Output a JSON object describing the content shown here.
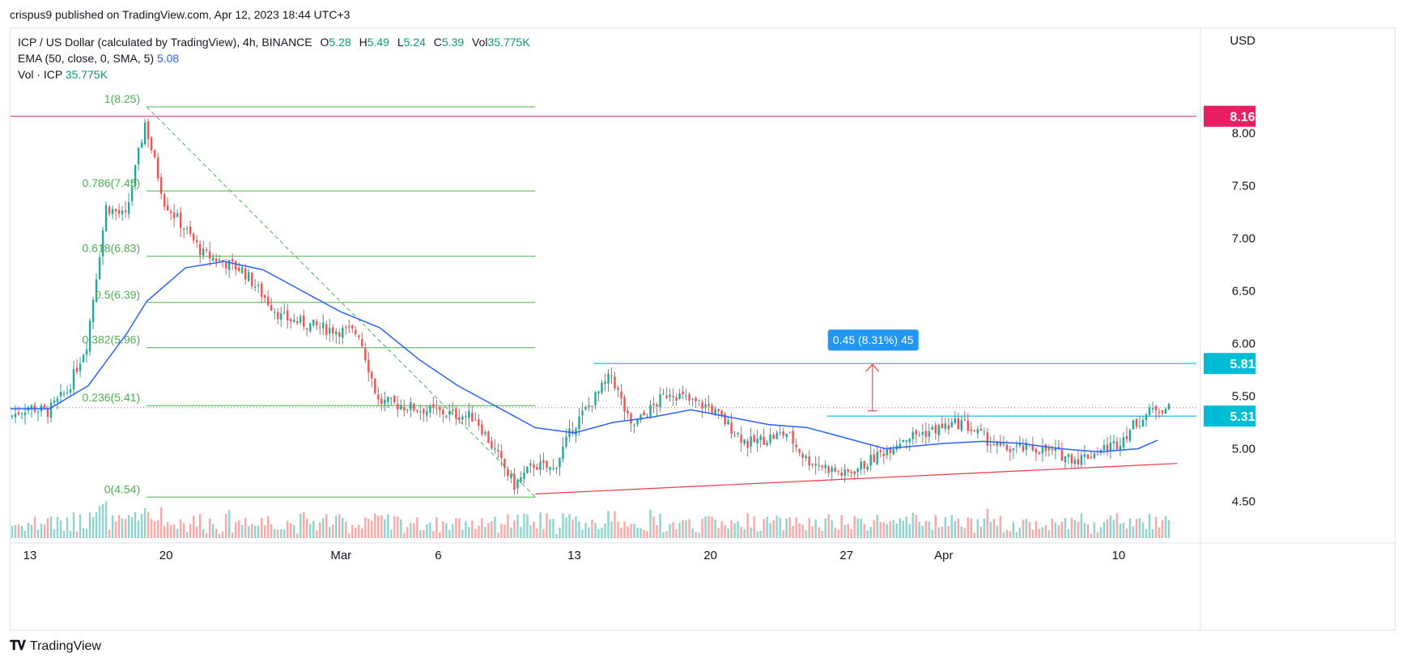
{
  "header": {
    "published_line": "crispus9 published on TradingView.com, Apr 12, 2023 18:44 UTC+3"
  },
  "legend": {
    "symbol_line": "ICP / US Dollar (calculated by TradingView), 4h, BINANCE",
    "o_label": "O",
    "o_value": "5.28",
    "h_label": "H",
    "h_value": "5.49",
    "l_label": "L",
    "l_value": "5.24",
    "c_label": "C",
    "c_value": "5.39",
    "vol_label": "Vol",
    "vol_value": "35.775K",
    "ema_label": "EMA (50, close, 0, SMA, 5)",
    "ema_value": "5.08",
    "vol_row_label": "Vol · ICP",
    "vol_row_value": "35.775K"
  },
  "footer": {
    "brand": "TradingView"
  },
  "colors": {
    "up": "#26a69a",
    "down": "#ef5350",
    "ema": "#2962ff",
    "fib": "#4caf50",
    "resistance_red": "#e91e63",
    "cyan": "#00bcd4",
    "trend": "#f23645",
    "measure": "#2196f3"
  },
  "chart_data": {
    "type": "candlestick",
    "title": "ICP / US Dollar (calculated by TradingView), 4h, BINANCE",
    "currency_label": "USD",
    "y_ticks": [
      "8.00",
      "7.50",
      "7.00",
      "6.50",
      "6.00",
      "5.50",
      "5.00",
      "4.50"
    ],
    "ylim": [
      4.15,
      8.55
    ],
    "x_ticks": [
      {
        "label": "13",
        "date": "2023-02-13"
      },
      {
        "label": "20",
        "date": "2023-02-20"
      },
      {
        "label": "Mar",
        "date": "2023-03-01"
      },
      {
        "label": "6",
        "date": "2023-03-06"
      },
      {
        "label": "13",
        "date": "2023-03-13"
      },
      {
        "label": "20",
        "date": "2023-03-20"
      },
      {
        "label": "27",
        "date": "2023-03-27"
      },
      {
        "label": "Apr",
        "date": "2023-04-01"
      },
      {
        "label": "10",
        "date": "2023-04-10"
      }
    ],
    "xlim": [
      "2023-02-12",
      "2023-04-14"
    ],
    "price_badges": [
      {
        "label": "8.16",
        "value": 8.16,
        "color": "#e91e63"
      },
      {
        "label": "5.81",
        "value": 5.81,
        "color": "#00bcd4"
      },
      {
        "label": "5.31",
        "value": 5.31,
        "color": "#00bcd4"
      }
    ],
    "fibonacci": [
      {
        "label": "1(8.25)",
        "value": 8.25
      },
      {
        "label": "0.786(7.45)",
        "value": 7.45
      },
      {
        "label": "0.618(6.83)",
        "value": 6.83
      },
      {
        "label": "0.5(6.39)",
        "value": 6.39
      },
      {
        "label": "0.382(5.96)",
        "value": 5.96
      },
      {
        "label": "0.236(5.41)",
        "value": 5.41
      },
      {
        "label": "0(4.54)",
        "value": 4.54
      }
    ],
    "measure_label": "0.45 (8.31%) 45",
    "measure_from": 5.36,
    "measure_to": 5.81,
    "key_closes": [
      {
        "date": "2023-02-12",
        "close": 5.3
      },
      {
        "date": "2023-02-13",
        "close": 5.4
      },
      {
        "date": "2023-02-14",
        "close": 5.35
      },
      {
        "date": "2023-02-15",
        "close": 5.55
      },
      {
        "date": "2023-02-16",
        "close": 6.0
      },
      {
        "date": "2023-02-17",
        "close": 7.3
      },
      {
        "date": "2023-02-18",
        "close": 7.2
      },
      {
        "date": "2023-02-19",
        "close": 8.1
      },
      {
        "date": "2023-02-20",
        "close": 7.35
      },
      {
        "date": "2023-02-22",
        "close": 6.85
      },
      {
        "date": "2023-02-24",
        "close": 6.7
      },
      {
        "date": "2023-02-26",
        "close": 6.25
      },
      {
        "date": "2023-02-28",
        "close": 6.15
      },
      {
        "date": "2023-03-02",
        "close": 6.1
      },
      {
        "date": "2023-03-03",
        "close": 5.45
      },
      {
        "date": "2023-03-06",
        "close": 5.35
      },
      {
        "date": "2023-03-08",
        "close": 5.3
      },
      {
        "date": "2023-03-10",
        "close": 4.65
      },
      {
        "date": "2023-03-11",
        "close": 4.85
      },
      {
        "date": "2023-03-12",
        "close": 4.8
      },
      {
        "date": "2023-03-13",
        "close": 5.2
      },
      {
        "date": "2023-03-14",
        "close": 5.45
      },
      {
        "date": "2023-03-15",
        "close": 5.7
      },
      {
        "date": "2023-03-16",
        "close": 5.2
      },
      {
        "date": "2023-03-18",
        "close": 5.55
      },
      {
        "date": "2023-03-19",
        "close": 5.45
      },
      {
        "date": "2023-03-20",
        "close": 5.4
      },
      {
        "date": "2023-03-22",
        "close": 5.05
      },
      {
        "date": "2023-03-24",
        "close": 5.15
      },
      {
        "date": "2023-03-25",
        "close": 4.9
      },
      {
        "date": "2023-03-27",
        "close": 4.75
      },
      {
        "date": "2023-03-28",
        "close": 4.85
      },
      {
        "date": "2023-03-30",
        "close": 5.1
      },
      {
        "date": "2023-04-02",
        "close": 5.25
      },
      {
        "date": "2023-04-04",
        "close": 5.0
      },
      {
        "date": "2023-04-06",
        "close": 5.0
      },
      {
        "date": "2023-04-08",
        "close": 4.9
      },
      {
        "date": "2023-04-10",
        "close": 5.05
      },
      {
        "date": "2023-04-11",
        "close": 5.25
      },
      {
        "date": "2023-04-12",
        "close": 5.39
      }
    ],
    "ema_points": [
      {
        "date": "2023-02-12",
        "value": 5.38
      },
      {
        "date": "2023-02-14",
        "value": 5.38
      },
      {
        "date": "2023-02-16",
        "value": 5.6
      },
      {
        "date": "2023-02-18",
        "value": 6.1
      },
      {
        "date": "2023-02-19",
        "value": 6.4
      },
      {
        "date": "2023-02-21",
        "value": 6.72
      },
      {
        "date": "2023-02-23",
        "value": 6.78
      },
      {
        "date": "2023-02-25",
        "value": 6.7
      },
      {
        "date": "2023-02-27",
        "value": 6.5
      },
      {
        "date": "2023-03-01",
        "value": 6.3
      },
      {
        "date": "2023-03-03",
        "value": 6.15
      },
      {
        "date": "2023-03-05",
        "value": 5.85
      },
      {
        "date": "2023-03-07",
        "value": 5.6
      },
      {
        "date": "2023-03-09",
        "value": 5.4
      },
      {
        "date": "2023-03-11",
        "value": 5.2
      },
      {
        "date": "2023-03-13",
        "value": 5.15
      },
      {
        "date": "2023-03-15",
        "value": 5.25
      },
      {
        "date": "2023-03-17",
        "value": 5.3
      },
      {
        "date": "2023-03-19",
        "value": 5.37
      },
      {
        "date": "2023-03-21",
        "value": 5.3
      },
      {
        "date": "2023-03-23",
        "value": 5.23
      },
      {
        "date": "2023-03-25",
        "value": 5.2
      },
      {
        "date": "2023-03-27",
        "value": 5.1
      },
      {
        "date": "2023-03-29",
        "value": 5.0
      },
      {
        "date": "2023-04-01",
        "value": 5.05
      },
      {
        "date": "2023-04-03",
        "value": 5.07
      },
      {
        "date": "2023-04-05",
        "value": 5.05
      },
      {
        "date": "2023-04-07",
        "value": 5.0
      },
      {
        "date": "2023-04-09",
        "value": 4.97
      },
      {
        "date": "2023-04-11",
        "value": 5.0
      },
      {
        "date": "2023-04-12",
        "value": 5.08
      }
    ]
  }
}
